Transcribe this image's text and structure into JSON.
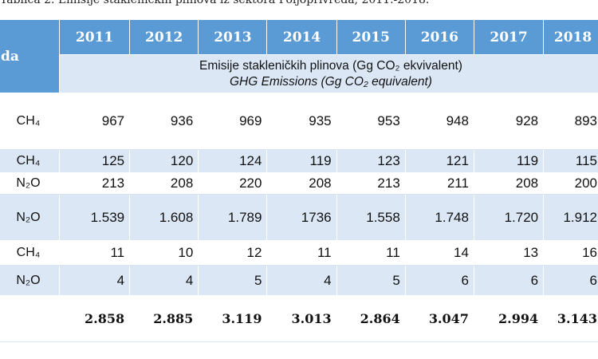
{
  "caption": "Tablica 2. Emisije stakleničkih plinova iz sektora Poljoprivreda, 2011.-2018.",
  "header": {
    "first_col": "da",
    "years": [
      "2011",
      "2012",
      "2013",
      "2014",
      "2015",
      "2016",
      "2017",
      "2018"
    ],
    "subtitle_hr": "Emisije stakleničkih plinova (Gg CO₂ ekvivalent)",
    "subtitle_en": "GHG Emissions (Gg CO₂ equivalent)"
  },
  "rows": [
    {
      "gas": "CH₄",
      "values": [
        "967",
        "936",
        "969",
        "935",
        "953",
        "948",
        "928",
        "893"
      ]
    },
    {
      "gas": "CH₄",
      "values": [
        "125",
        "120",
        "124",
        "119",
        "123",
        "121",
        "119",
        "115"
      ]
    },
    {
      "gas": "N₂O",
      "values": [
        "213",
        "208",
        "220",
        "208",
        "213",
        "211",
        "208",
        "200"
      ]
    },
    {
      "gas": "N₂O",
      "values": [
        "1.539",
        "1.608",
        "1.789",
        "1736",
        "1.558",
        "1.748",
        "1.720",
        "1.912"
      ]
    },
    {
      "gas": "CH₄",
      "values": [
        "11",
        "10",
        "12",
        "11",
        "11",
        "14",
        "13",
        "16"
      ]
    },
    {
      "gas": "N₂O",
      "values": [
        "4",
        "4",
        "5",
        "4",
        "5",
        "6",
        "6",
        "6"
      ]
    }
  ],
  "total": {
    "gas": "",
    "values": [
      "2.858",
      "2.885",
      "3.119",
      "3.013",
      "2.864",
      "3.047",
      "2.994",
      "3.143"
    ]
  },
  "colors": {
    "header_bg": "#5b9bd5",
    "band_bg": "#dbe7f5"
  }
}
